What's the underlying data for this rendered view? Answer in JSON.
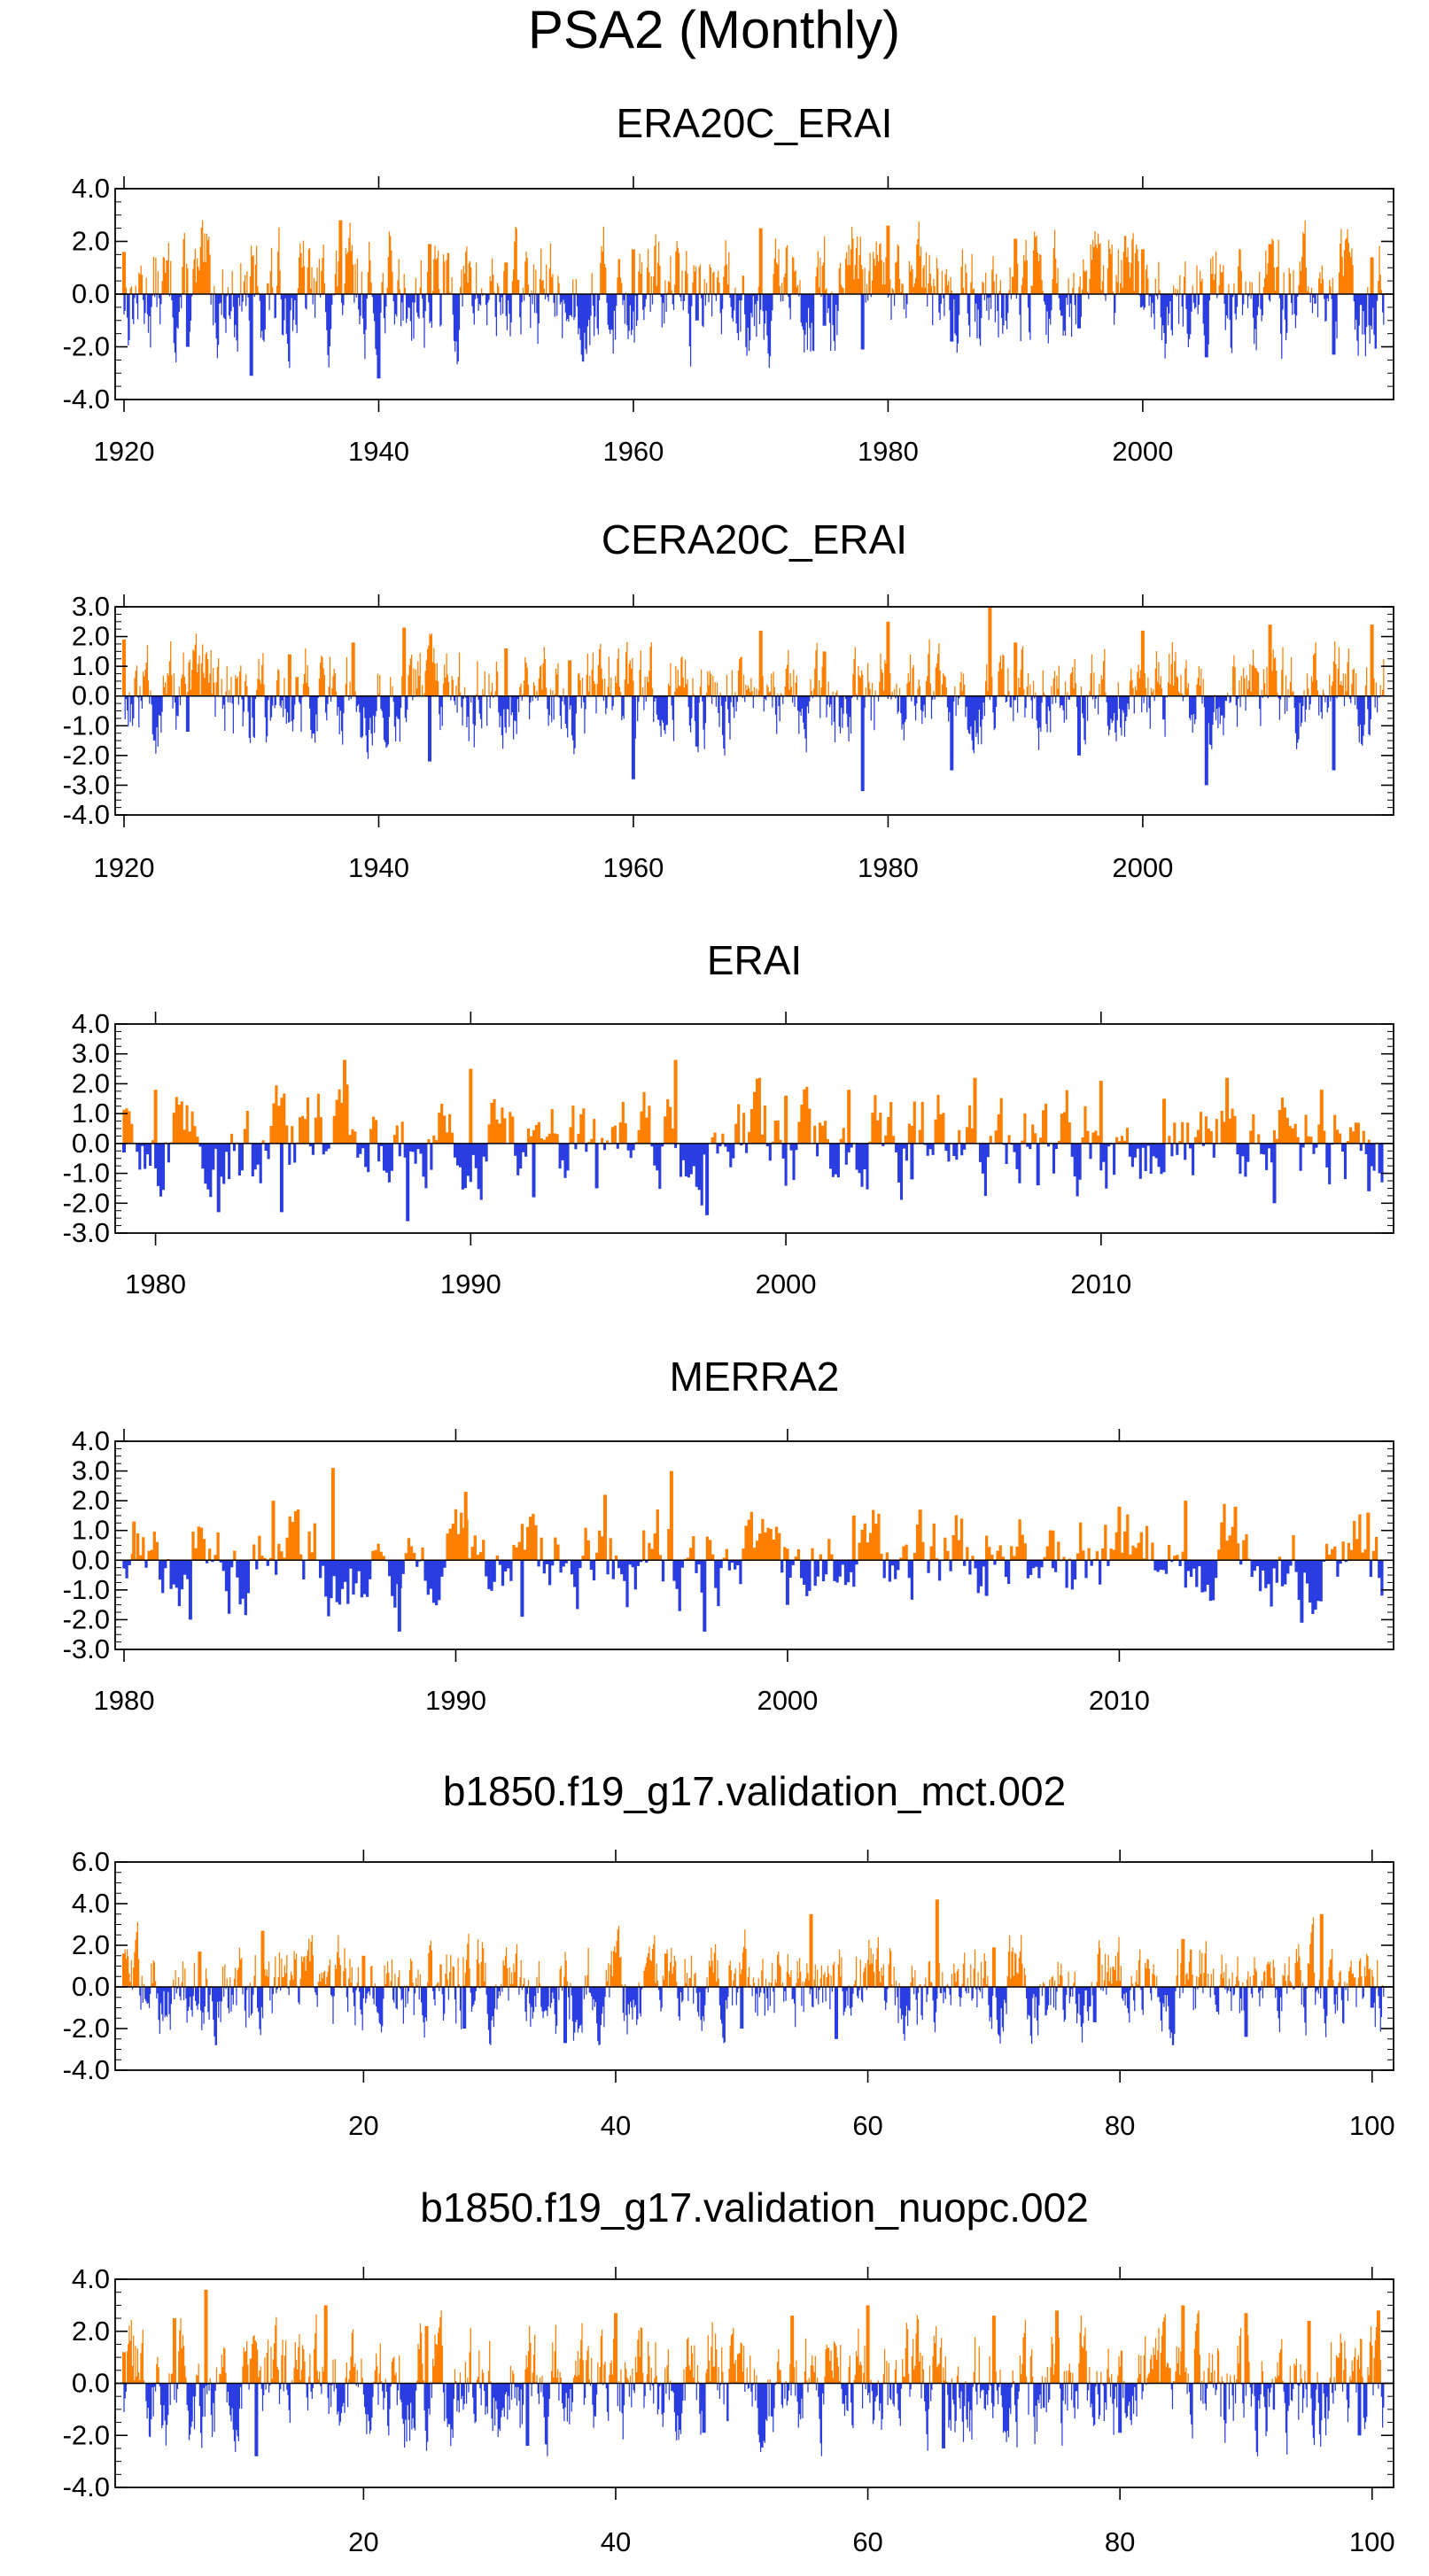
{
  "title": "PSA2 (Monthly)",
  "colors": {
    "positive": "#ff8000",
    "negative": "#2a3de0",
    "axis": "#000000"
  },
  "chart_data": [
    {
      "type": "bar",
      "title": "ERA20C_ERAI",
      "xlim": [
        1920,
        2019
      ],
      "ylim": [
        -4,
        4
      ],
      "yticks": [
        "4.0",
        "2.0",
        "0.0",
        "-2.0",
        "-4.0"
      ],
      "xticks": [
        "1920",
        "1940",
        "1960",
        "1980",
        "2000"
      ],
      "x": [
        1920,
        1925,
        1930,
        1937,
        1940,
        1944,
        1950,
        1955,
        1960,
        1965,
        1970,
        1975,
        1978,
        1980,
        1985,
        1990,
        1995,
        2000,
        2005,
        2010,
        2015,
        2018
      ],
      "values": [
        1.6,
        -2.0,
        -3.1,
        2.8,
        -3.2,
        1.9,
        1.2,
        -0.8,
        1.7,
        -1.0,
        2.5,
        -1.2,
        -2.1,
        2.6,
        -1.8,
        2.1,
        -1.3,
        1.7,
        -2.4,
        1.9,
        -2.3,
        1.4
      ]
    },
    {
      "type": "bar",
      "title": "CERA20C_ERAI",
      "xlim": [
        1920,
        2019
      ],
      "ylim": [
        -4,
        3
      ],
      "yticks": [
        "3.0",
        "2.0",
        "1.0",
        "0.0",
        "-1.0",
        "-2.0",
        "-3.0",
        "-4.0"
      ],
      "xticks": [
        "1920",
        "1940",
        "1960",
        "1980",
        "2000"
      ],
      "x": [
        1920,
        1925,
        1933,
        1938,
        1942,
        1944,
        1950,
        1955,
        1960,
        1965,
        1970,
        1975,
        1978,
        1980,
        1985,
        1988,
        1990,
        1995,
        2000,
        2005,
        2010,
        2015,
        2018
      ],
      "values": [
        1.9,
        -1.2,
        1.4,
        1.8,
        2.3,
        -2.2,
        1.6,
        1.2,
        -2.8,
        -1.7,
        2.2,
        1.5,
        -3.2,
        2.5,
        -2.5,
        3.0,
        1.8,
        -2.0,
        2.2,
        -3.0,
        2.4,
        -2.5,
        2.4
      ]
    },
    {
      "type": "bar",
      "title": "ERAI",
      "xlim": [
        1979,
        2019
      ],
      "ylim": [
        -3,
        4
      ],
      "yticks": [
        "4.0",
        "3.0",
        "2.0",
        "1.0",
        "0.0",
        "-1.0",
        "-2.0",
        "-3.0"
      ],
      "xticks": [
        "1980",
        "1990",
        "2000",
        "2010"
      ],
      "x": [
        1979,
        1980,
        1982,
        1984,
        1986,
        1988,
        1990,
        1992,
        1994,
        1996.5,
        1997.5,
        2000,
        2002,
        2004,
        2006,
        2008,
        2010,
        2012,
        2014,
        2015.5,
        2017,
        2018.5
      ],
      "values": [
        -0.3,
        1.8,
        -2.3,
        -2.3,
        2.8,
        -2.6,
        2.5,
        -1.8,
        -1.5,
        2.8,
        -2.4,
        1.6,
        1.8,
        -1.2,
        2.2,
        -1.4,
        2.1,
        1.5,
        2.2,
        -2.0,
        1.8,
        -1.6
      ]
    },
    {
      "type": "bar",
      "title": "MERRA2",
      "xlim": [
        1980,
        2018
      ],
      "ylim": [
        -3,
        4
      ],
      "yticks": [
        "4.0",
        "3.0",
        "2.0",
        "1.0",
        "0.0",
        "-1.0",
        "-2.0",
        "-3.0"
      ],
      "xticks": [
        "1980",
        "1990",
        "2000",
        "2010"
      ],
      "x": [
        1980.3,
        1982,
        1984.5,
        1986.3,
        1988.3,
        1990.3,
        1992,
        1994.5,
        1996.5,
        1997.5,
        2000,
        2002,
        2004,
        2006,
        2008,
        2010,
        2012,
        2013.5,
        2015.5,
        2017.5
      ],
      "values": [
        1.3,
        -2.0,
        2.0,
        3.1,
        -2.4,
        2.3,
        -1.9,
        2.2,
        3.0,
        -2.4,
        -1.5,
        1.5,
        1.7,
        -1.2,
        1.0,
        1.8,
        2.0,
        1.8,
        -2.1,
        1.6
      ]
    },
    {
      "type": "bar",
      "title": "b1850.f19_g17.validation_mct.002",
      "xlim": [
        1,
        101
      ],
      "ylim": [
        -4,
        6
      ],
      "yticks": [
        "6.0",
        "4.0",
        "2.0",
        "0.0",
        "-2.0",
        "-4.0"
      ],
      "xticks": [
        "20",
        "40",
        "60",
        "80",
        "100"
      ],
      "x": [
        1,
        7,
        12,
        20,
        28,
        36,
        44,
        50,
        55.5,
        57.5,
        65.5,
        70,
        78,
        85,
        90,
        96,
        100
      ],
      "values": [
        1.6,
        1.7,
        2.7,
        1.5,
        -2.0,
        -2.7,
        1.6,
        -2.0,
        3.5,
        -2.5,
        4.2,
        1.9,
        -1.7,
        2.3,
        -2.4,
        3.5,
        -1.0
      ]
    },
    {
      "type": "bar",
      "title": "b1850.f19_g17.validation_nuopc.002",
      "xlim": [
        1,
        101
      ],
      "ylim": [
        -4,
        4
      ],
      "yticks": [
        "4.0",
        "2.0",
        "0.0",
        "-2.0",
        "-4.0"
      ],
      "xticks": [
        "20",
        "40",
        "60",
        "80",
        "100"
      ],
      "x": [
        1,
        5,
        7.5,
        11.5,
        17,
        25,
        33,
        40,
        47,
        54,
        60,
        66,
        70,
        75,
        80,
        85,
        90,
        95,
        99,
        100.5
      ],
      "values": [
        1.2,
        2.5,
        3.6,
        -2.8,
        3.0,
        2.2,
        -2.4,
        2.7,
        -1.9,
        2.6,
        3.0,
        -2.5,
        2.6,
        2.8,
        -1.9,
        3.0,
        2.7,
        2.4,
        -2.0,
        2.8
      ]
    }
  ]
}
